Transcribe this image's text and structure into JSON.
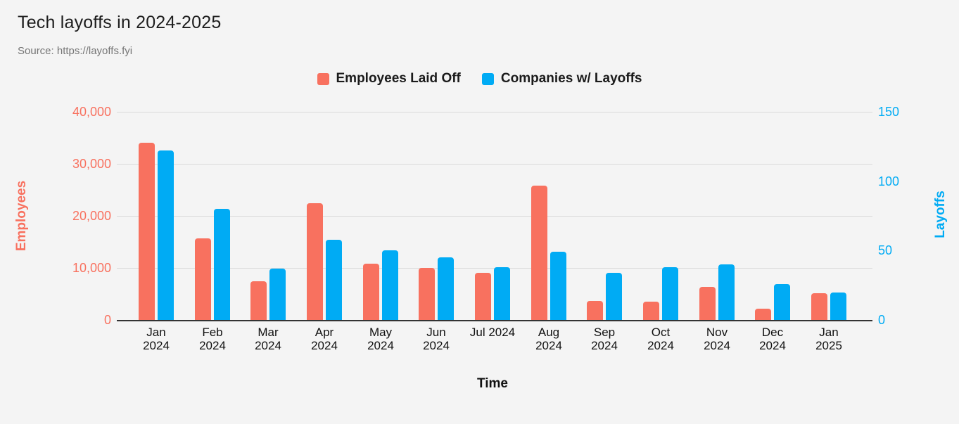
{
  "title": "Tech layoffs in 2024-2025",
  "source": "Source: https://layoffs.fyi",
  "legend": [
    {
      "label": "Employees Laid Off",
      "color": "#F8715F"
    },
    {
      "label": "Companies w/ Layoffs",
      "color": "#00ABF4"
    }
  ],
  "chart_data": {
    "type": "bar",
    "title": "Tech layoffs in 2024-2025",
    "xlabel": "Time",
    "categories": [
      "Jan 2024",
      "Feb 2024",
      "Mar 2024",
      "Apr 2024",
      "May 2024",
      "Jun 2024",
      "Jul 2024",
      "Aug 2024",
      "Sep 2024",
      "Oct 2024",
      "Nov 2024",
      "Dec 2024",
      "Jan 2025"
    ],
    "x_tick_two_line": [
      true,
      true,
      true,
      true,
      true,
      true,
      false,
      true,
      true,
      true,
      true,
      true,
      true
    ],
    "series": [
      {
        "name": "Employees Laid Off",
        "axis": "left",
        "color": "#F8715F",
        "values": [
          34100,
          15700,
          7400,
          22400,
          10800,
          10000,
          9000,
          25800,
          3600,
          3500,
          6400,
          2200,
          5100
        ]
      },
      {
        "name": "Companies w/ Layoffs",
        "axis": "right",
        "color": "#00ABF4",
        "values": [
          122,
          80,
          37,
          58,
          50,
          45,
          38,
          49,
          34,
          38,
          40,
          26,
          20
        ]
      }
    ],
    "left_axis": {
      "label": "Employees",
      "color": "#F8715F",
      "max": 40000,
      "min": 0,
      "ticks": [
        {
          "value": 0,
          "label": "0"
        },
        {
          "value": 10000,
          "label": "10,000"
        },
        {
          "value": 20000,
          "label": "20,000"
        },
        {
          "value": 30000,
          "label": "30,000"
        },
        {
          "value": 40000,
          "label": "40,000"
        }
      ]
    },
    "right_axis": {
      "label": "Layoffs",
      "color": "#00ABF4",
      "max": 150,
      "min": 0,
      "ticks": [
        {
          "value": 0,
          "label": "0"
        },
        {
          "value": 50,
          "label": "50"
        },
        {
          "value": 100,
          "label": "100"
        },
        {
          "value": 150,
          "label": "150"
        }
      ]
    },
    "grid": true,
    "legend_position": "top"
  },
  "colors": {
    "background": "#F4F4F4",
    "gridline": "#DADADA",
    "axis_line": "#333333",
    "title_text": "#1D1D1D",
    "source_text": "#757575",
    "legend_text": "#1B1B1B",
    "x_tick_text": "#111111"
  }
}
